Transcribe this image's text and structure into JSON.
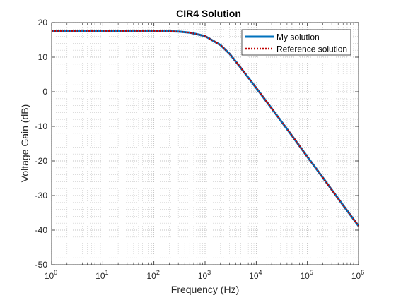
{
  "chart_data": {
    "type": "line",
    "title": "CIR4 Solution",
    "xlabel": "Frequency (Hz)",
    "ylabel": "Voltage Gain (dB)",
    "xscale": "log",
    "xlim": [
      1,
      1000000
    ],
    "ylim": [
      -50,
      20
    ],
    "xticks": [
      1,
      10,
      100,
      1000,
      10000,
      100000,
      1000000
    ],
    "xtick_labels": [
      {
        "base": "10",
        "exp": "0"
      },
      {
        "base": "10",
        "exp": "1"
      },
      {
        "base": "10",
        "exp": "2"
      },
      {
        "base": "10",
        "exp": "3"
      },
      {
        "base": "10",
        "exp": "4"
      },
      {
        "base": "10",
        "exp": "5"
      },
      {
        "base": "10",
        "exp": "6"
      }
    ],
    "yticks": [
      20,
      10,
      0,
      -10,
      -20,
      -30,
      -40,
      -50
    ],
    "ytick_labels": [
      "20",
      "10",
      "0",
      "-10",
      "-20",
      "-30",
      "-40",
      "-50"
    ],
    "grid": "major and minor",
    "legend_position": "top-right",
    "series": [
      {
        "name": "My solution",
        "color": "#0072BD",
        "style": "solid",
        "x": [
          1,
          10,
          100,
          300,
          500,
          1000,
          2000,
          3000,
          5000,
          10000,
          20000,
          50000,
          100000,
          200000,
          500000,
          1000000
        ],
        "y": [
          17.6,
          17.6,
          17.6,
          17.4,
          17.1,
          16.1,
          13.5,
          11.0,
          6.9,
          1.1,
          -4.8,
          -12.7,
          -18.8,
          -24.8,
          -32.8,
          -38.8
        ]
      },
      {
        "name": "Reference solution",
        "color": "#C00000",
        "style": "dotted",
        "x": [
          1,
          10,
          100,
          300,
          500,
          1000,
          2000,
          3000,
          5000,
          10000,
          20000,
          50000,
          100000,
          200000,
          500000,
          1000000
        ],
        "y": [
          17.6,
          17.6,
          17.6,
          17.4,
          17.1,
          16.1,
          13.5,
          11.0,
          6.9,
          1.1,
          -4.8,
          -12.7,
          -18.8,
          -24.8,
          -32.8,
          -38.8
        ]
      }
    ]
  }
}
